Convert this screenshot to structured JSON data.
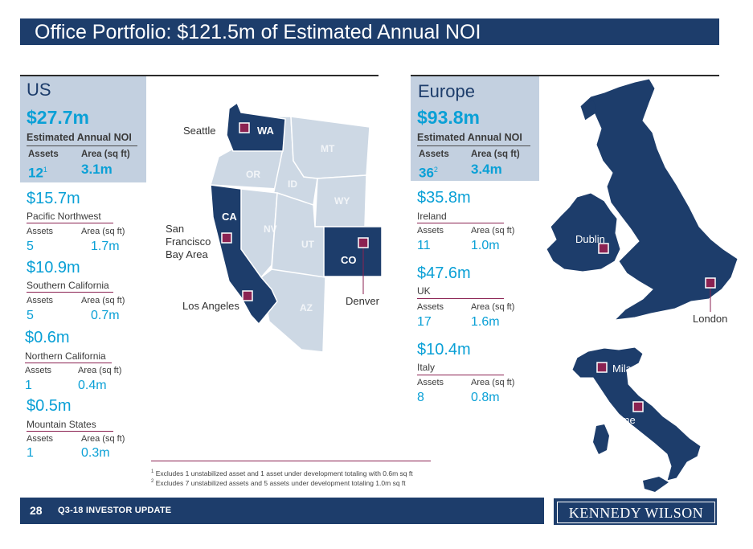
{
  "header": {
    "title": "Office Portfolio: $121.5m of Estimated Annual NOI"
  },
  "us": {
    "title": "US",
    "noi": "$27.7m",
    "noi_label": "Estimated Annual NOI",
    "assets_label": "Assets",
    "area_label": "Area (sq ft)",
    "assets": "12",
    "assets_sup": "1",
    "area": "3.1m",
    "regions": [
      {
        "value": "$15.7m",
        "name": "Pacific Northwest",
        "assets_label": "Assets",
        "area_label": "Area (sq ft)",
        "assets": "5",
        "area": "1.7m"
      },
      {
        "value": "$10.9m",
        "name": "Southern California",
        "assets_label": "Assets",
        "area_label": "Area (sq ft)",
        "assets": "5",
        "area": "0.7m"
      },
      {
        "value": "$0.6m",
        "name": "Northern California",
        "assets_label": "Assets",
        "area_label": "Area (sq ft)",
        "assets": "1",
        "area": "0.4m"
      },
      {
        "value": "$0.5m",
        "name": "Mountain States",
        "assets_label": "Assets",
        "area_label": "Area (sq ft)",
        "assets": "1",
        "area": "0.3m"
      }
    ]
  },
  "europe": {
    "title": "Europe",
    "noi": "$93.8m",
    "noi_label": "Estimated Annual NOI",
    "assets_label": "Assets",
    "area_label": "Area (sq ft)",
    "assets": "36",
    "assets_sup": "2",
    "area": "3.4m",
    "regions": [
      {
        "value": "$35.8m",
        "name": "Ireland",
        "assets_label": "Assets",
        "area_label": "Area (sq ft)",
        "assets": "11",
        "area": "1.0m"
      },
      {
        "value": "$47.6m",
        "name": "UK",
        "assets_label": "Assets",
        "area_label": "Area (sq ft)",
        "assets": "17",
        "area": "1.6m"
      },
      {
        "value": "$10.4m",
        "name": "Italy",
        "assets_label": "Assets",
        "area_label": "Area (sq ft)",
        "assets": "8",
        "area": "0.8m"
      }
    ]
  },
  "us_map": {
    "states": {
      "wa": "WA",
      "or": "OR",
      "ca": "CA",
      "nv": "NV",
      "id": "ID",
      "mt": "MT",
      "wy": "WY",
      "ut": "UT",
      "az": "AZ",
      "co": "CO"
    },
    "cities": {
      "seattle": "Seattle",
      "sf_line1": "San",
      "sf_line2": "Francisco",
      "sf_line3": "Bay Area",
      "la": "Los Angeles",
      "denver": "Denver"
    }
  },
  "europe_map": {
    "cities": {
      "dublin": "Dublin",
      "london": "London",
      "milan": "Milan",
      "rome": "Rome"
    }
  },
  "footnotes": {
    "note1_marker": "1",
    "note1": "Excludes 1 unstabilized asset and 1 asset under development totaling with 0.6m sq ft",
    "note2_marker": "2",
    "note2": "Excludes 7 unstabilized assets and 5 assets under development totaling 1.0m sq ft"
  },
  "footer": {
    "page_number": "28",
    "text": "Q3-18 INVESTOR UPDATE",
    "logo": "KENNEDY WILSON"
  },
  "colors": {
    "navy": "#1d3d6b",
    "accent_blue": "#0aa0d6",
    "panel": "#c3d0e0",
    "marker": "#8b2252",
    "state_faded": "#cdd8e4"
  }
}
